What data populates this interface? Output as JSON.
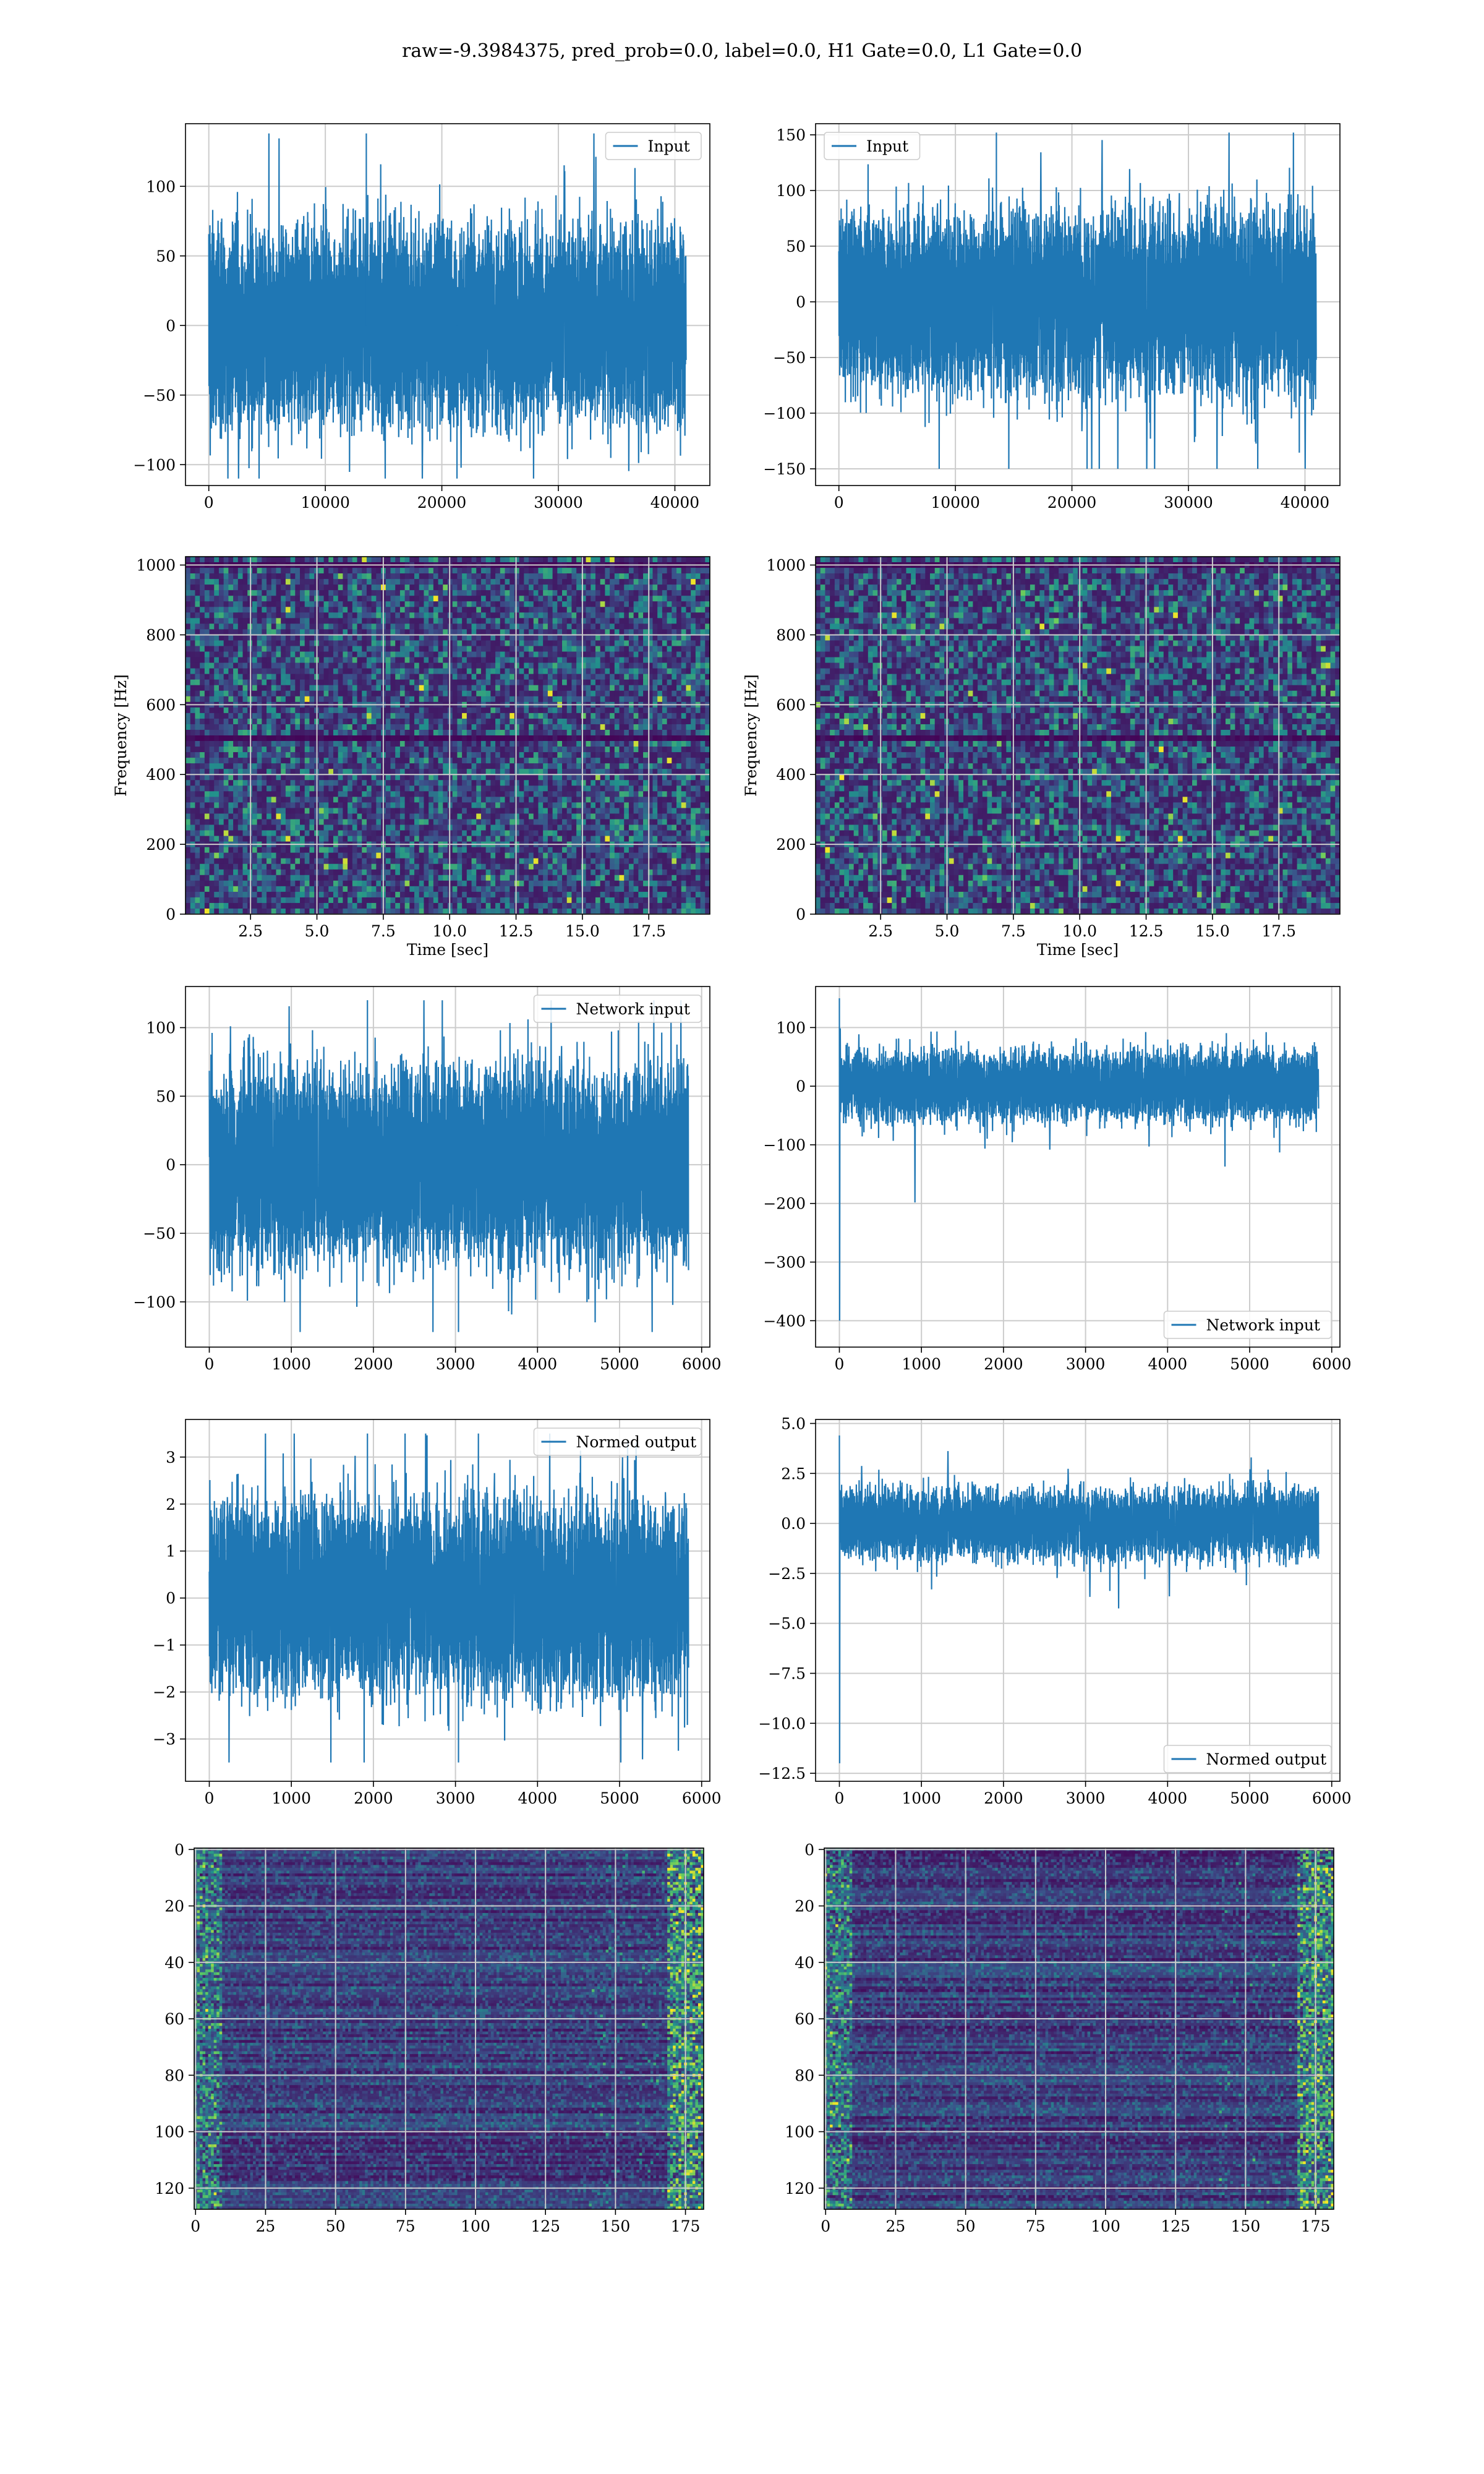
{
  "figure": {
    "title": "raw=-9.3984375, pred_prob=0.0, label=0.0, H1 Gate=0.0, L1 Gate=0.0"
  },
  "colors": {
    "line": "#1f77b4",
    "grid": "#cccccc",
    "heatmap_low": "#440154",
    "heatmap_mid": "#31688e",
    "heatmap_high": "#35b779",
    "heatmap_peak": "#fde725"
  },
  "chart_data": [
    {
      "id": "row1-left",
      "type": "line",
      "title": "",
      "xlabel": "",
      "ylabel": "",
      "xlim": [
        -2000,
        43000
      ],
      "ylim": [
        -115,
        145
      ],
      "xticks": [
        0,
        10000,
        20000,
        30000,
        40000
      ],
      "yticks": [
        -100,
        -50,
        0,
        50,
        100
      ],
      "grid": true,
      "legend": "top-right",
      "series": [
        {
          "name": "Input",
          "n_samples": 40960,
          "x_range": [
            0,
            40960
          ],
          "y_min": -110,
          "y_max": 138,
          "typical_range": [
            -65,
            65
          ]
        }
      ]
    },
    {
      "id": "row1-right",
      "type": "line",
      "title": "",
      "xlabel": "",
      "ylabel": "",
      "xlim": [
        -2000,
        43000
      ],
      "ylim": [
        -165,
        160
      ],
      "xticks": [
        0,
        10000,
        20000,
        30000,
        40000
      ],
      "yticks": [
        -150,
        -100,
        -50,
        0,
        50,
        100,
        150
      ],
      "grid": true,
      "legend": "top-left",
      "series": [
        {
          "name": "Input",
          "n_samples": 40960,
          "x_range": [
            0,
            40960
          ],
          "y_min": -150,
          "y_max": 152,
          "typical_range": [
            -75,
            75
          ]
        }
      ]
    },
    {
      "id": "row2-left",
      "type": "heatmap",
      "title": "",
      "xlabel": "Time [sec]",
      "ylabel": "Frequency [Hz]",
      "xlim": [
        0.05,
        19.8
      ],
      "ylim": [
        0,
        1024
      ],
      "xticks": [
        2.5,
        5.0,
        7.5,
        10.0,
        12.5,
        15.0,
        17.5
      ],
      "xticklabels": [
        "2.5",
        "5.0",
        "7.5",
        "10.0",
        "12.5",
        "15.0",
        "17.5"
      ],
      "yticks": [
        0,
        200,
        400,
        600,
        800,
        1000
      ],
      "grid": true,
      "colormap": "viridis",
      "dark_bands_hz": [
        500,
        1000
      ]
    },
    {
      "id": "row2-right",
      "type": "heatmap",
      "title": "",
      "xlabel": "Time [sec]",
      "ylabel": "Frequency [Hz]",
      "xlim": [
        0.05,
        19.8
      ],
      "ylim": [
        0,
        1024
      ],
      "xticks": [
        2.5,
        5.0,
        7.5,
        10.0,
        12.5,
        15.0,
        17.5
      ],
      "xticklabels": [
        "2.5",
        "5.0",
        "7.5",
        "10.0",
        "12.5",
        "15.0",
        "17.5"
      ],
      "yticks": [
        0,
        200,
        400,
        600,
        800,
        1000
      ],
      "grid": true,
      "colormap": "viridis",
      "dark_bands_hz": [
        500,
        1000
      ]
    },
    {
      "id": "row3-left",
      "type": "line",
      "title": "",
      "xlabel": "",
      "ylabel": "",
      "xlim": [
        -290,
        6100
      ],
      "ylim": [
        -133,
        130
      ],
      "xticks": [
        0,
        1000,
        2000,
        3000,
        4000,
        5000,
        6000
      ],
      "yticks": [
        -100,
        -50,
        0,
        50,
        100
      ],
      "grid": true,
      "legend": "top-right",
      "series": [
        {
          "name": "Network input",
          "n_samples": 5840,
          "x_range": [
            0,
            5840
          ],
          "y_min": -122,
          "y_max": 120,
          "typical_range": [
            -65,
            65
          ]
        }
      ]
    },
    {
      "id": "row3-right",
      "type": "line",
      "title": "",
      "xlabel": "",
      "ylabel": "",
      "xlim": [
        -290,
        6100
      ],
      "ylim": [
        -445,
        170
      ],
      "xticks": [
        0,
        1000,
        2000,
        3000,
        4000,
        5000,
        6000
      ],
      "yticks": [
        -400,
        -300,
        -200,
        -100,
        0,
        100
      ],
      "grid": true,
      "legend": "bottom-right",
      "series": [
        {
          "name": "Network input",
          "n_samples": 5840,
          "x_range": [
            0,
            5840
          ],
          "y_min": -400,
          "y_max": 150,
          "typical_range": [
            -55,
            55
          ],
          "initial_spike": [
            150,
            -400
          ]
        }
      ]
    },
    {
      "id": "row4-left",
      "type": "line",
      "title": "",
      "xlabel": "",
      "ylabel": "",
      "xlim": [
        -290,
        6100
      ],
      "ylim": [
        -3.9,
        3.8
      ],
      "xticks": [
        0,
        1000,
        2000,
        3000,
        4000,
        5000,
        6000
      ],
      "yticks": [
        -3,
        -2,
        -1,
        0,
        1,
        2,
        3
      ],
      "grid": true,
      "legend": "top-right",
      "series": [
        {
          "name": "Normed output",
          "n_samples": 5840,
          "x_range": [
            0,
            5840
          ],
          "y_min": -3.5,
          "y_max": 3.5,
          "typical_range": [
            -1.9,
            1.9
          ]
        }
      ]
    },
    {
      "id": "row4-right",
      "type": "line",
      "title": "",
      "xlabel": "",
      "ylabel": "",
      "xlim": [
        -290,
        6100
      ],
      "ylim": [
        -12.9,
        5.2
      ],
      "xticks": [
        0,
        1000,
        2000,
        3000,
        4000,
        5000,
        6000
      ],
      "yticks": [
        -12.5,
        -10.0,
        -7.5,
        -5.0,
        -2.5,
        0.0,
        2.5,
        5.0
      ],
      "yticklabels": [
        "−12.5",
        "−10.0",
        "−7.5",
        "−5.0",
        "−2.5",
        "0.0",
        "2.5",
        "5.0"
      ],
      "grid": true,
      "legend": "bottom-right",
      "series": [
        {
          "name": "Normed output",
          "n_samples": 5840,
          "x_range": [
            0,
            5840
          ],
          "y_min": -12,
          "y_max": 4.4,
          "typical_range": [
            -1.6,
            1.6
          ],
          "initial_spike": [
            4.4,
            -12
          ]
        }
      ]
    },
    {
      "id": "row5-left",
      "type": "heatmap",
      "title": "",
      "xlabel": "",
      "ylabel": "",
      "xlim": [
        -0.5,
        181.5
      ],
      "ylim": [
        127.5,
        -0.5
      ],
      "xticks": [
        0,
        25,
        50,
        75,
        100,
        125,
        150,
        175
      ],
      "yticks": [
        0,
        20,
        40,
        60,
        80,
        100,
        120
      ],
      "grid": true,
      "colormap": "viridis",
      "rows": 128,
      "cols": 182
    },
    {
      "id": "row5-right",
      "type": "heatmap",
      "title": "",
      "xlabel": "",
      "ylabel": "",
      "xlim": [
        -0.5,
        181.5
      ],
      "ylim": [
        127.5,
        -0.5
      ],
      "xticks": [
        0,
        25,
        50,
        75,
        100,
        125,
        150,
        175
      ],
      "yticks": [
        0,
        20,
        40,
        60,
        80,
        100,
        120
      ],
      "grid": true,
      "colormap": "viridis",
      "rows": 128,
      "cols": 182
    }
  ]
}
